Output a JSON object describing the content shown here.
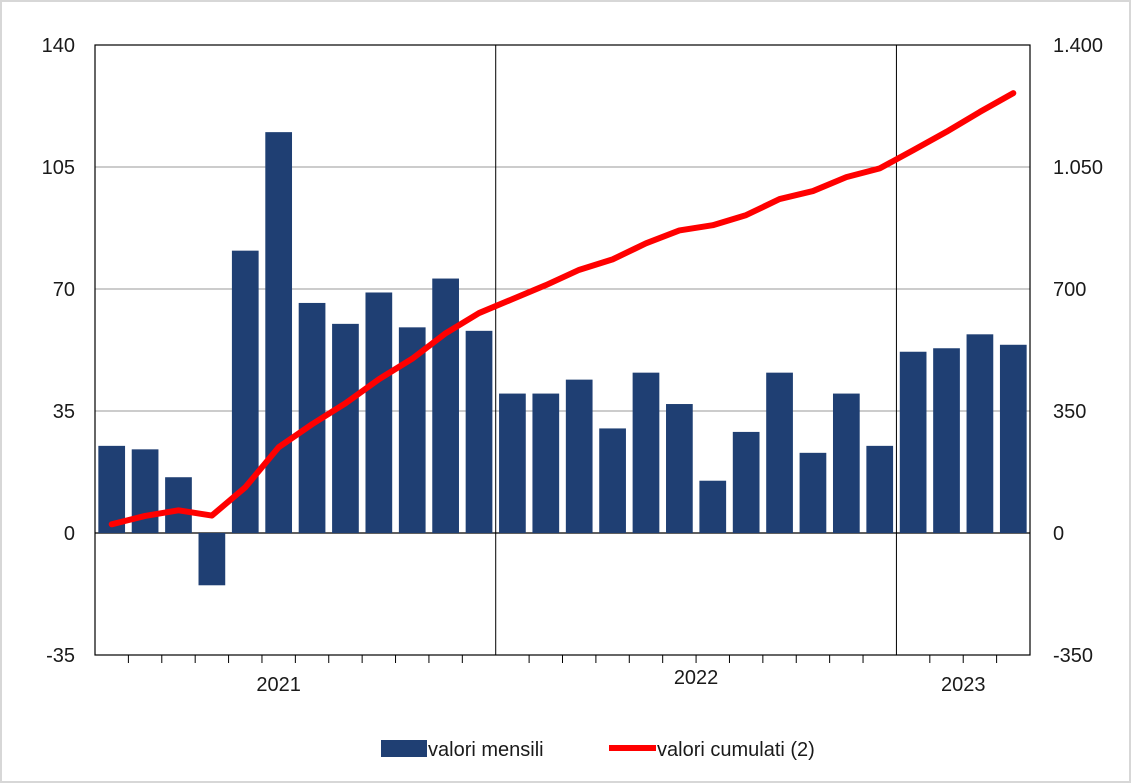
{
  "chart_data": {
    "type": "bar",
    "title": "",
    "xlabel": "",
    "ylabel": "",
    "ylim": [
      -35,
      140
    ],
    "y2lim": [
      -350,
      1400
    ],
    "left_ticks": [
      {
        "value": 140,
        "label": "140"
      },
      {
        "value": 105,
        "label": "105"
      },
      {
        "value": 70,
        "label": "70"
      },
      {
        "value": 35,
        "label": "35"
      },
      {
        "value": 0,
        "label": "0"
      },
      {
        "value": -35,
        "label": "-35"
      }
    ],
    "right_ticks": [
      {
        "value": 1400,
        "label": "1.400"
      },
      {
        "value": 1050,
        "label": "1.050"
      },
      {
        "value": 700,
        "label": "700"
      },
      {
        "value": 350,
        "label": "350"
      },
      {
        "value": 0,
        "label": "0"
      },
      {
        "value": -350,
        "label": "-350"
      }
    ],
    "grid": true,
    "year_labels": [
      "2021",
      "2022",
      "2023"
    ],
    "legend_position": "bottom",
    "series": [
      {
        "name": "valori mensili",
        "type": "bar",
        "axis": "left",
        "color": "#1f3f73",
        "values": [
          25,
          24,
          16,
          -15,
          81,
          115,
          66,
          60,
          69,
          59,
          73,
          58,
          40,
          40,
          44,
          30,
          46,
          37,
          15,
          29,
          46,
          23,
          40,
          25,
          52,
          53,
          57,
          54
        ]
      },
      {
        "name": "valori cumulati (2)",
        "type": "line",
        "axis": "right",
        "color": "#ff0000",
        "values": [
          25,
          49,
          65,
          50,
          131,
          246,
          312,
          372,
          441,
          500,
          573,
          631,
          671,
          711,
          755,
          785,
          831,
          868,
          883,
          912,
          958,
          981,
          1021,
          1046,
          1098,
          1151,
          1208,
          1262
        ]
      }
    ]
  }
}
